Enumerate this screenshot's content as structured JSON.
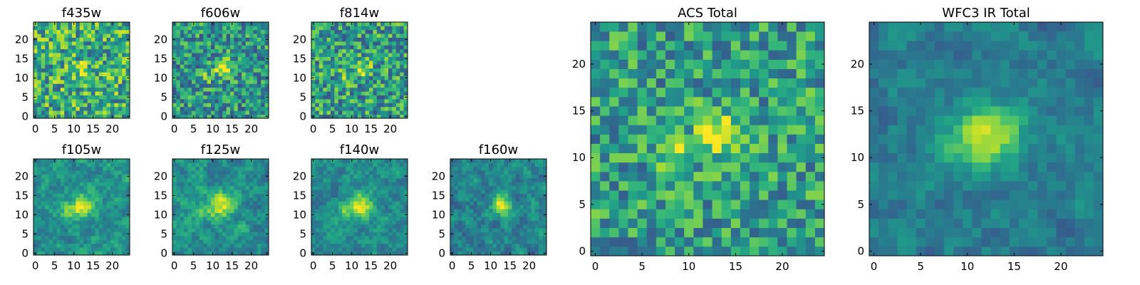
{
  "chart_data": [
    {
      "type": "heatmap",
      "title": "f435w",
      "nx": 25,
      "ny": 25,
      "xlim": [
        -0.5,
        24.5
      ],
      "ylim": [
        -0.5,
        24.5
      ],
      "xticks": [
        0,
        5,
        10,
        15,
        20
      ],
      "yticks": [
        0,
        5,
        10,
        15,
        20
      ],
      "colormap": "viridis",
      "source": {
        "x": 12.5,
        "y": 12.0,
        "amp": 0.2,
        "sigma": 1.6
      },
      "noise": 0.32,
      "base": 0.62,
      "seed": 11,
      "smooth": 0
    },
    {
      "type": "heatmap",
      "title": "f606w",
      "nx": 25,
      "ny": 25,
      "xlim": [
        -0.5,
        24.5
      ],
      "ylim": [
        -0.5,
        24.5
      ],
      "xticks": [
        0,
        5,
        10,
        15,
        20
      ],
      "yticks": [
        0,
        5,
        10,
        15,
        20
      ],
      "colormap": "viridis",
      "source": {
        "x": 13.0,
        "y": 12.5,
        "amp": 0.55,
        "sigma": 1.6
      },
      "secondary": {
        "x": 8.0,
        "y": 10.5,
        "amp": 0.25,
        "sigma": 1.2
      },
      "noise": 0.28,
      "base": 0.52,
      "seed": 23,
      "smooth": 0
    },
    {
      "type": "heatmap",
      "title": "f814w",
      "nx": 25,
      "ny": 25,
      "xlim": [
        -0.5,
        24.5
      ],
      "ylim": [
        -0.5,
        24.5
      ],
      "xticks": [
        0,
        5,
        10,
        15,
        20
      ],
      "yticks": [
        0,
        5,
        10,
        15,
        20
      ],
      "colormap": "viridis",
      "source": {
        "x": 13.0,
        "y": 12.5,
        "amp": 0.35,
        "sigma": 1.4
      },
      "secondary": {
        "x": 8.0,
        "y": 10.5,
        "amp": 0.25,
        "sigma": 1.1
      },
      "noise": 0.3,
      "base": 0.55,
      "seed": 37,
      "smooth": 0
    },
    {
      "type": "heatmap",
      "title": "f105w",
      "nx": 25,
      "ny": 25,
      "xlim": [
        -0.5,
        24.5
      ],
      "ylim": [
        -0.5,
        24.5
      ],
      "xticks": [
        0,
        5,
        10,
        15,
        20
      ],
      "yticks": [
        0,
        5,
        10,
        15,
        20
      ],
      "colormap": "viridis",
      "source": {
        "x": 12.5,
        "y": 12.5,
        "amp": 0.45,
        "sigma": 2.2
      },
      "secondary": {
        "x": 8.5,
        "y": 11.0,
        "amp": 0.2,
        "sigma": 1.6
      },
      "noise": 0.26,
      "base": 0.5,
      "seed": 41,
      "smooth": 1
    },
    {
      "type": "heatmap",
      "title": "f125w",
      "nx": 25,
      "ny": 25,
      "xlim": [
        -0.5,
        24.5
      ],
      "ylim": [
        -0.5,
        24.5
      ],
      "xticks": [
        0,
        5,
        10,
        15,
        20
      ],
      "yticks": [
        0,
        5,
        10,
        15,
        20
      ],
      "colormap": "viridis",
      "source": {
        "x": 12.5,
        "y": 12.5,
        "amp": 0.45,
        "sigma": 2.2
      },
      "secondary": {
        "x": 8.0,
        "y": 11.0,
        "amp": 0.2,
        "sigma": 1.6
      },
      "noise": 0.26,
      "base": 0.5,
      "seed": 53,
      "smooth": 1
    },
    {
      "type": "heatmap",
      "title": "f140w",
      "nx": 25,
      "ny": 25,
      "xlim": [
        -0.5,
        24.5
      ],
      "ylim": [
        -0.5,
        24.5
      ],
      "xticks": [
        0,
        5,
        10,
        15,
        20
      ],
      "yticks": [
        0,
        5,
        10,
        15,
        20
      ],
      "colormap": "viridis",
      "source": {
        "x": 12.5,
        "y": 12.5,
        "amp": 0.45,
        "sigma": 2.2
      },
      "secondary": {
        "x": 8.5,
        "y": 11.0,
        "amp": 0.25,
        "sigma": 1.6
      },
      "noise": 0.24,
      "base": 0.48,
      "seed": 67,
      "smooth": 1
    },
    {
      "type": "heatmap",
      "title": "f160w",
      "nx": 25,
      "ny": 25,
      "xlim": [
        -0.5,
        24.5
      ],
      "ylim": [
        -0.5,
        24.5
      ],
      "xticks": [
        0,
        5,
        10,
        15,
        20
      ],
      "yticks": [
        0,
        5,
        10,
        15,
        20
      ],
      "colormap": "viridis",
      "source": {
        "x": 13.0,
        "y": 12.5,
        "amp": 0.55,
        "sigma": 1.8
      },
      "noise": 0.26,
      "base": 0.45,
      "seed": 79,
      "smooth": 1
    },
    {
      "type": "heatmap",
      "title": "ACS Total",
      "nx": 25,
      "ny": 25,
      "xlim": [
        -0.5,
        24.5
      ],
      "ylim": [
        -0.5,
        24.5
      ],
      "xticks": [
        0,
        5,
        10,
        15,
        20
      ],
      "yticks": [
        0,
        5,
        10,
        15,
        20
      ],
      "colormap": "viridis",
      "source": {
        "x": 13.0,
        "y": 12.5,
        "amp": 0.5,
        "sigma": 1.6
      },
      "secondary": {
        "x": 8.0,
        "y": 10.5,
        "amp": 0.35,
        "sigma": 1.2
      },
      "noise": 0.26,
      "base": 0.55,
      "seed": 97,
      "smooth": 0
    },
    {
      "type": "heatmap",
      "title": "WFC3 IR Total",
      "nx": 25,
      "ny": 25,
      "xlim": [
        -0.5,
        24.5
      ],
      "ylim": [
        -0.5,
        24.5
      ],
      "xticks": [
        0,
        5,
        10,
        15,
        20
      ],
      "yticks": [
        0,
        5,
        10,
        15,
        20
      ],
      "colormap": "viridis",
      "source": {
        "x": 12.5,
        "y": 12.5,
        "amp": 0.5,
        "sigma": 2.2
      },
      "secondary": {
        "x": 8.5,
        "y": 11.0,
        "amp": 0.2,
        "sigma": 1.8
      },
      "noise": 0.2,
      "base": 0.42,
      "seed": 113,
      "smooth": 1
    }
  ]
}
